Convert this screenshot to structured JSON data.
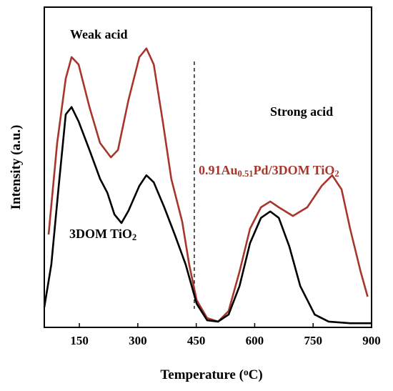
{
  "chart_data": {
    "type": "line",
    "x_label": {
      "parts": [
        "Temperature (",
        "o",
        "C)"
      ],
      "shift": [
        "none",
        "super",
        "none"
      ]
    },
    "y_label": "Intensity (a.u.)",
    "xlim": [
      60,
      900
    ],
    "xticks": [
      150,
      300,
      450,
      600,
      750,
      900
    ],
    "ylim": [
      0,
      100
    ],
    "divider_x": 445,
    "series": [
      {
        "color": "#a8352b",
        "x": [
          71,
          93,
          115,
          130,
          148,
          176,
          203,
          231,
          249,
          276,
          304,
          322,
          341,
          364,
          386,
          414,
          432,
          451,
          478,
          506,
          533,
          561,
          588,
          616,
          640,
          662,
          698,
          735,
          772,
          799,
          823,
          845,
          872,
          890
        ],
        "values": [
          29,
          57.6,
          77.7,
          84.4,
          82.1,
          68.8,
          57.6,
          53.1,
          55.4,
          71,
          84.4,
          87.1,
          82.1,
          64.3,
          46.4,
          33,
          19.6,
          8.5,
          2.9,
          1.8,
          5.1,
          17.4,
          30.8,
          37.5,
          39.3,
          37.5,
          34.8,
          37.5,
          44.2,
          47.5,
          43.1,
          30.8,
          17.4,
          9.6
        ]
      },
      {
        "color": "#000000",
        "x": [
          60,
          78,
          97,
          115,
          130,
          148,
          176,
          203,
          222,
          240,
          258,
          276,
          304,
          322,
          341,
          368,
          396,
          423,
          451,
          478,
          506,
          533,
          561,
          588,
          616,
          640,
          662,
          689,
          717,
          754,
          790,
          845,
          900
        ],
        "values": [
          6.3,
          19.6,
          44.2,
          66.5,
          68.8,
          64.3,
          55.4,
          46.4,
          42,
          35.3,
          32.6,
          36.4,
          44.2,
          47.5,
          45.3,
          37.5,
          28.6,
          19.6,
          7.4,
          2.2,
          1.8,
          4,
          12.9,
          26.3,
          34.2,
          36.2,
          34.2,
          25.2,
          12.9,
          4,
          1.8,
          1.3,
          1.3
        ]
      }
    ],
    "annotations": [
      {
        "parts": [
          "Weak acid"
        ],
        "shift": [
          "none"
        ],
        "color": "#000000"
      },
      {
        "parts": [
          "Strong acid"
        ],
        "shift": [
          "none"
        ],
        "color": "#000000"
      },
      {
        "parts": [
          "0.91Au",
          "0.51",
          "Pd/3DOM TiO",
          "2"
        ],
        "shift": [
          "none",
          "sub",
          "none",
          "sub"
        ],
        "color": "#a8352b"
      },
      {
        "parts": [
          "3DOM TiO",
          "2"
        ],
        "shift": [
          "none",
          "sub"
        ],
        "color": "#000000"
      }
    ]
  }
}
